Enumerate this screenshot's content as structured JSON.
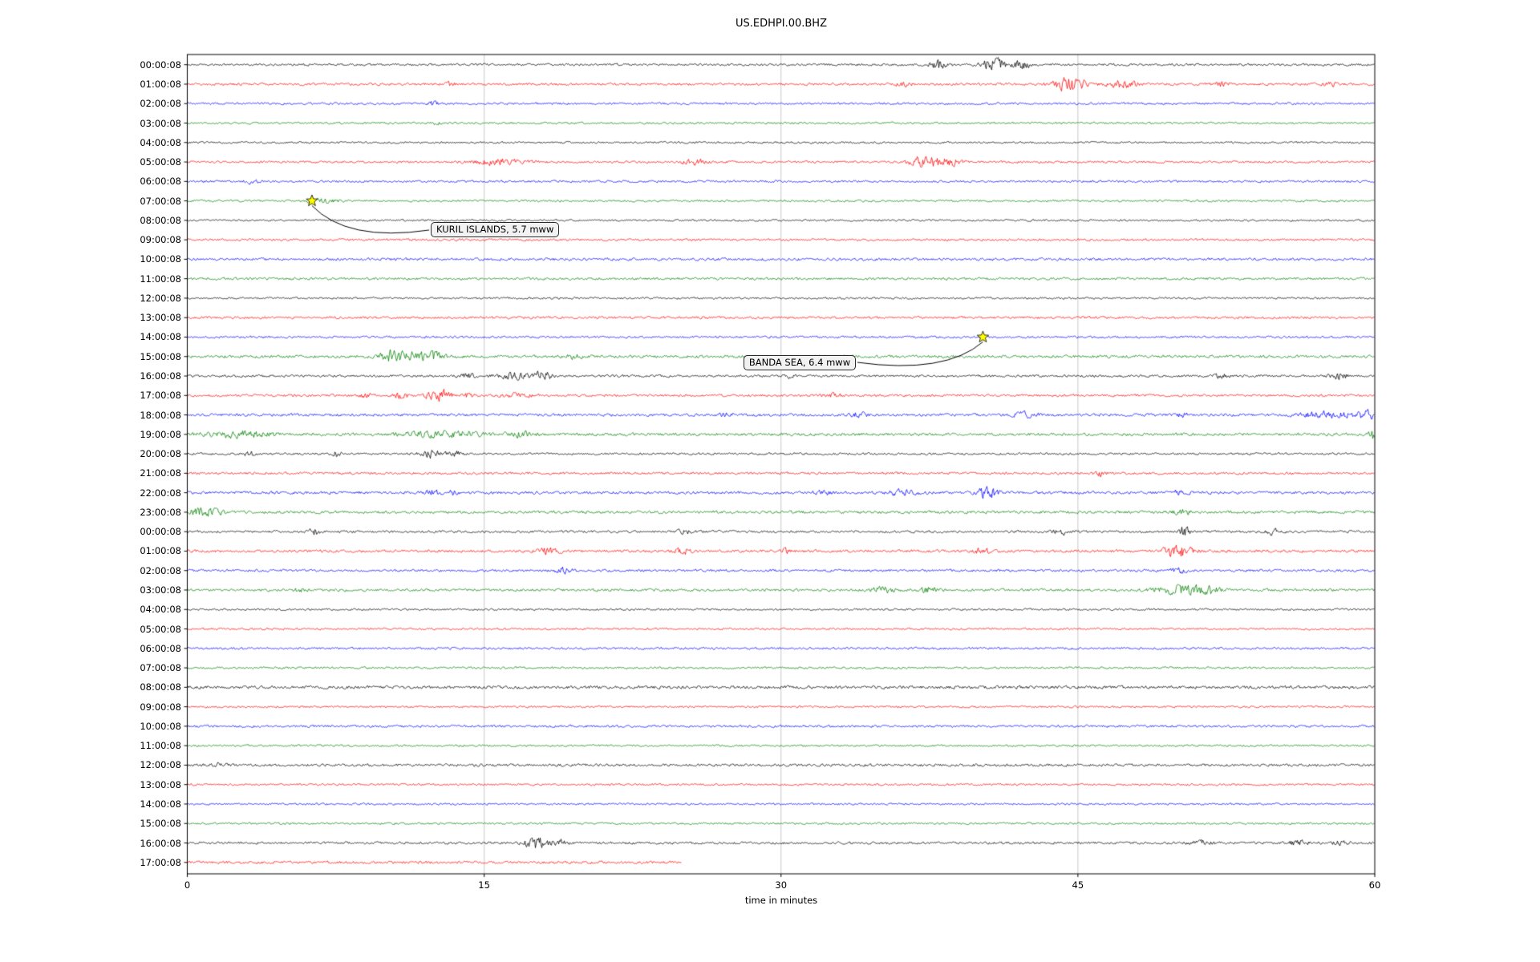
{
  "chart_data": {
    "type": "line",
    "subtype": "seismogram-helicorder-dayplot",
    "title": "US.EDHPI.00.BHZ",
    "xlabel": "time in minutes",
    "x_range": [
      0,
      60
    ],
    "x_ticks": [
      0,
      15,
      30,
      45,
      60
    ],
    "minutes_per_row": 60,
    "grid": "vertical-only",
    "trace_colors_cycle": [
      "#000000",
      "#ff0000",
      "#0000ff",
      "#008000"
    ],
    "event_marker_color": "#ffff00",
    "rows": [
      {
        "label": "00:00:08",
        "noise": 1.0,
        "bursts": [
          [
            37.9,
            5,
            0.35
          ],
          [
            40.8,
            6,
            0.45
          ],
          [
            42.2,
            3.5,
            0.3
          ]
        ]
      },
      {
        "label": "01:00:08",
        "noise": 1.1,
        "bursts": [
          [
            13.3,
            1.8,
            0.2
          ],
          [
            36.2,
            1.8,
            0.25
          ],
          [
            44.6,
            6.5,
            0.55
          ],
          [
            47.2,
            3.5,
            0.5
          ],
          [
            52.3,
            2,
            0.3
          ],
          [
            57.8,
            1.8,
            0.25
          ]
        ]
      },
      {
        "label": "02:00:08",
        "noise": 1.0,
        "bursts": [
          [
            12.4,
            1.5,
            0.2
          ]
        ]
      },
      {
        "label": "03:00:08",
        "noise": 0.9,
        "bursts": [
          [
            12.6,
            1.6,
            0.15
          ]
        ]
      },
      {
        "label": "04:00:08",
        "noise": 0.9,
        "bursts": []
      },
      {
        "label": "05:00:08",
        "noise": 1.0,
        "bursts": [
          [
            15.8,
            2.6,
            0.9
          ],
          [
            25.6,
            2.8,
            0.4
          ],
          [
            37.3,
            6.5,
            0.5
          ],
          [
            38.6,
            3.5,
            0.4
          ]
        ]
      },
      {
        "label": "06:00:08",
        "noise": 1.0,
        "bursts": [
          [
            3.2,
            1.4,
            0.3
          ]
        ]
      },
      {
        "label": "07:00:08",
        "noise": 0.9,
        "bursts": [
          [
            6.8,
            1.6,
            0.6
          ]
        ]
      },
      {
        "label": "08:00:08",
        "noise": 0.9,
        "bursts": []
      },
      {
        "label": "09:00:08",
        "noise": 1.0,
        "bursts": []
      },
      {
        "label": "10:00:08",
        "noise": 1.2,
        "bursts": []
      },
      {
        "label": "11:00:08",
        "noise": 1.1,
        "bursts": []
      },
      {
        "label": "12:00:08",
        "noise": 0.9,
        "bursts": []
      },
      {
        "label": "13:00:08",
        "noise": 1.1,
        "bursts": []
      },
      {
        "label": "14:00:08",
        "noise": 1.0,
        "bursts": []
      },
      {
        "label": "15:00:08",
        "noise": 1.3,
        "bursts": [
          [
            10.4,
            5.5,
            0.45
          ],
          [
            11.6,
            3.5,
            0.6
          ],
          [
            12.6,
            2.5,
            0.4
          ],
          [
            19.5,
            1.8,
            0.3
          ]
        ]
      },
      {
        "label": "16:00:08",
        "noise": 1.1,
        "bursts": [
          [
            14.2,
            1.8,
            0.3
          ],
          [
            16.6,
            2.8,
            0.7
          ],
          [
            18.0,
            3.5,
            0.3
          ],
          [
            30.5,
            1.8,
            0.2
          ],
          [
            52.2,
            1.8,
            0.3
          ],
          [
            58.2,
            2.4,
            0.35
          ]
        ]
      },
      {
        "label": "17:00:08",
        "noise": 1.1,
        "bursts": [
          [
            9.0,
            1.8,
            0.3
          ],
          [
            10.8,
            2.2,
            0.3
          ],
          [
            12.7,
            5.5,
            0.4
          ],
          [
            14.2,
            2,
            0.3
          ],
          [
            16.6,
            2.2,
            0.5
          ],
          [
            32.6,
            1.8,
            0.3
          ]
        ]
      },
      {
        "label": "18:00:08",
        "noise": 1.2,
        "bursts": [
          [
            27.2,
            1.8,
            0.3
          ],
          [
            33.9,
            2.2,
            0.3
          ],
          [
            42.3,
            2.2,
            0.4
          ],
          [
            50.2,
            1.8,
            0.3
          ],
          [
            57.6,
            2.6,
            1.0
          ],
          [
            59.6,
            3.5,
            0.4
          ]
        ]
      },
      {
        "label": "19:00:08",
        "noise": 1.3,
        "bursts": [
          [
            2.6,
            2.6,
            1.3
          ],
          [
            13.1,
            2.6,
            1.6
          ],
          [
            16.9,
            2.8,
            0.4
          ],
          [
            59.9,
            5,
            0.12
          ]
        ]
      },
      {
        "label": "20:00:08",
        "noise": 1.0,
        "bursts": [
          [
            3.1,
            2.2,
            0.2
          ],
          [
            7.5,
            2.6,
            0.2
          ],
          [
            12.3,
            3.5,
            0.4
          ],
          [
            13.5,
            2.6,
            0.3
          ]
        ]
      },
      {
        "label": "21:00:08",
        "noise": 1.1,
        "bursts": [
          [
            46.1,
            3.2,
            0.2
          ]
        ]
      },
      {
        "label": "22:00:08",
        "noise": 1.3,
        "bursts": [
          [
            12.4,
            2.2,
            0.3
          ],
          [
            13.3,
            2.2,
            0.2
          ],
          [
            32.1,
            2.2,
            0.3
          ],
          [
            36.2,
            2.6,
            0.5
          ],
          [
            40.4,
            4.5,
            0.4
          ],
          [
            50.1,
            1.8,
            0.3
          ]
        ]
      },
      {
        "label": "23:00:08",
        "noise": 1.3,
        "bursts": [
          [
            0.9,
            3.5,
            0.6
          ],
          [
            50.3,
            2.2,
            0.3
          ]
        ]
      },
      {
        "label": "00:00:08",
        "noise": 1.1,
        "bursts": [
          [
            6.4,
            2.8,
            0.2
          ],
          [
            25.1,
            1.8,
            0.25
          ],
          [
            44.2,
            2.2,
            0.3
          ],
          [
            50.4,
            5.5,
            0.18
          ],
          [
            54.8,
            2.8,
            0.2
          ]
        ]
      },
      {
        "label": "01:00:08",
        "noise": 1.2,
        "bursts": [
          [
            18.3,
            2.8,
            0.4
          ],
          [
            25.0,
            2.4,
            0.3
          ],
          [
            30.2,
            1.8,
            0.2
          ],
          [
            40.1,
            2.4,
            0.3
          ],
          [
            50.0,
            6.5,
            0.5
          ]
        ]
      },
      {
        "label": "02:00:08",
        "noise": 1.1,
        "bursts": [
          [
            19.0,
            2.4,
            0.3
          ],
          [
            50.1,
            2.8,
            0.3
          ]
        ]
      },
      {
        "label": "03:00:08",
        "noise": 1.2,
        "bursts": [
          [
            5.6,
            1.8,
            0.2
          ],
          [
            35.2,
            2.8,
            0.4
          ],
          [
            37.4,
            2.8,
            0.3
          ],
          [
            50.0,
            4.5,
            0.8
          ],
          [
            51.6,
            3.5,
            0.4
          ]
        ]
      },
      {
        "label": "04:00:08",
        "noise": 0.9,
        "bursts": []
      },
      {
        "label": "05:00:08",
        "noise": 0.9,
        "bursts": []
      },
      {
        "label": "06:00:08",
        "noise": 1.0,
        "bursts": []
      },
      {
        "label": "07:00:08",
        "noise": 0.9,
        "bursts": []
      },
      {
        "label": "08:00:08",
        "noise": 1.4,
        "bursts": []
      },
      {
        "label": "09:00:08",
        "noise": 0.9,
        "bursts": []
      },
      {
        "label": "10:00:08",
        "noise": 1.1,
        "bursts": []
      },
      {
        "label": "11:00:08",
        "noise": 0.9,
        "bursts": []
      },
      {
        "label": "12:00:08",
        "noise": 1.2,
        "bursts": [
          [
            1.6,
            1.8,
            0.3
          ]
        ]
      },
      {
        "label": "13:00:08",
        "noise": 0.9,
        "bursts": []
      },
      {
        "label": "14:00:08",
        "noise": 0.9,
        "bursts": []
      },
      {
        "label": "15:00:08",
        "noise": 0.9,
        "bursts": []
      },
      {
        "label": "16:00:08",
        "noise": 1.1,
        "bursts": [
          [
            17.6,
            5.5,
            0.4
          ],
          [
            18.9,
            2.8,
            0.3
          ],
          [
            51.2,
            2.2,
            0.4
          ],
          [
            56.2,
            2.2,
            0.4
          ],
          [
            58.3,
            1.8,
            0.3
          ]
        ]
      },
      {
        "label": "17:00:08",
        "noise": 1.2,
        "duration": 25,
        "bursts": []
      }
    ],
    "annotations": [
      {
        "text": "KURIL ISLANDS, 5.7 mww",
        "star_row": 7,
        "star_minute": 6.3,
        "label_row": 8.5,
        "label_minute": 12.3
      },
      {
        "text": "BANDA SEA, 6.4 mww",
        "star_row": 14,
        "star_minute": 40.2,
        "label_row": 15.3,
        "label_minute": 28.1
      }
    ]
  }
}
